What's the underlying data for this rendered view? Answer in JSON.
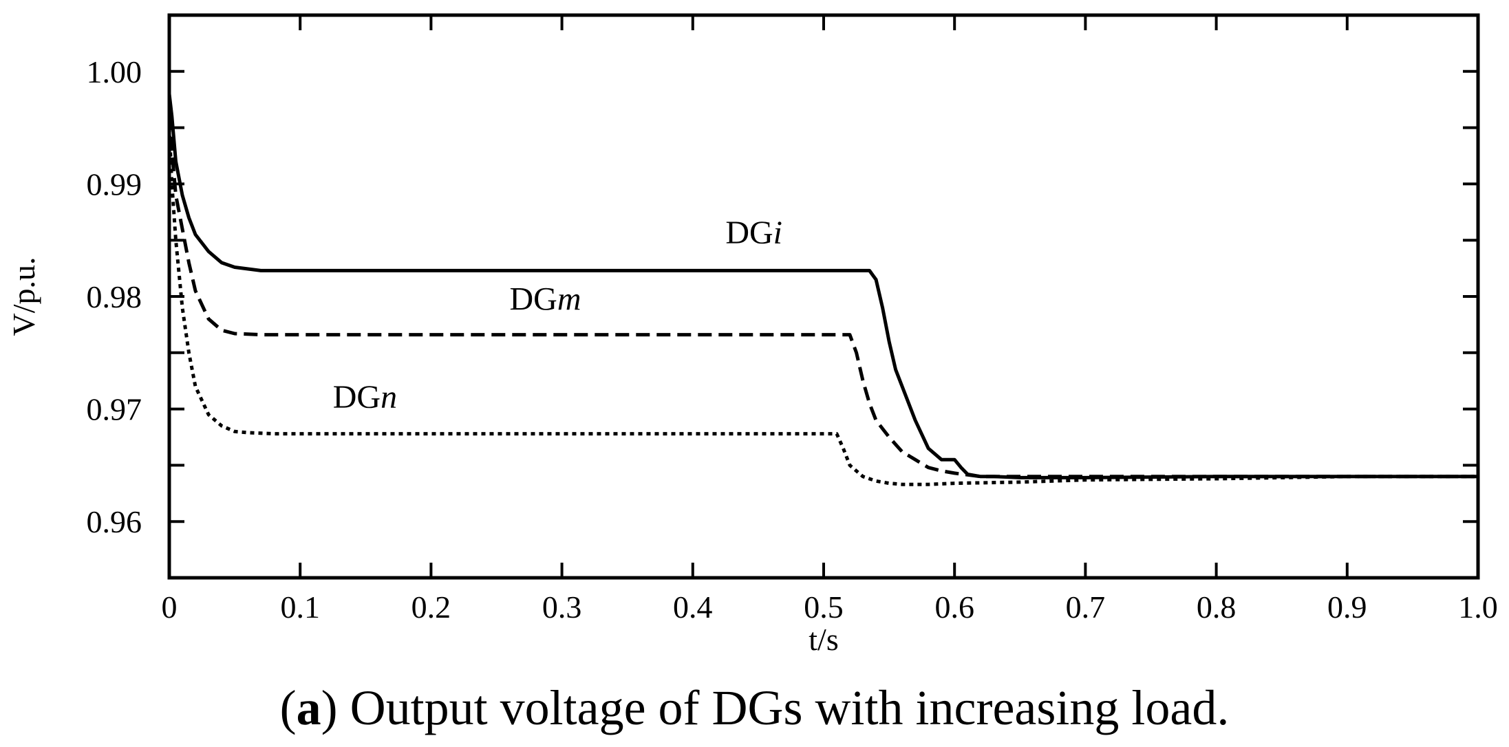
{
  "chart_data": {
    "type": "line",
    "title": "",
    "xlabel": "t/s",
    "ylabel": "V/p.u.",
    "xlim": [
      0,
      1.0
    ],
    "ylim": [
      0.955,
      1.005
    ],
    "x_ticks": [
      0,
      0.1,
      0.2,
      0.3,
      0.4,
      0.5,
      0.6,
      0.7,
      0.8,
      0.9,
      1.0
    ],
    "x_tick_labels": [
      "0",
      "0.1",
      "0.2",
      "0.3",
      "0.4",
      "0.5",
      "0.6",
      "0.7",
      "0.8",
      "0.9",
      "1.0"
    ],
    "y_ticks": [
      0.96,
      0.965,
      0.97,
      0.975,
      0.98,
      0.985,
      0.99,
      0.995,
      1.0
    ],
    "y_labeled_ticks": [
      0.96,
      0.97,
      0.98,
      0.99,
      1.0
    ],
    "y_tick_labels": [
      "0.96",
      "0.97",
      "0.98",
      "0.99",
      "1.00"
    ],
    "grid": false,
    "series": [
      {
        "name": "DGi",
        "prefix": "DG",
        "suffix": "i",
        "style": "solid",
        "x": [
          0,
          0.002,
          0.005,
          0.01,
          0.015,
          0.02,
          0.03,
          0.04,
          0.05,
          0.07,
          0.1,
          0.2,
          0.3,
          0.4,
          0.5,
          0.535,
          0.54,
          0.545,
          0.55,
          0.555,
          0.56,
          0.57,
          0.58,
          0.59,
          0.6,
          0.605,
          0.61,
          0.62,
          0.63,
          0.65,
          0.7,
          0.8,
          0.9,
          1.0
        ],
        "values": [
          0.998,
          0.996,
          0.992,
          0.989,
          0.987,
          0.9855,
          0.984,
          0.983,
          0.9826,
          0.9823,
          0.9823,
          0.9823,
          0.9823,
          0.9823,
          0.9823,
          0.9823,
          0.9815,
          0.979,
          0.976,
          0.9735,
          0.972,
          0.969,
          0.9665,
          0.9655,
          0.9655,
          0.9648,
          0.9642,
          0.964,
          0.964,
          0.9639,
          0.9639,
          0.964,
          0.964,
          0.964
        ]
      },
      {
        "name": "DGm",
        "prefix": "DG",
        "suffix": "m",
        "style": "dashed",
        "x": [
          0,
          0.002,
          0.005,
          0.01,
          0.015,
          0.02,
          0.03,
          0.04,
          0.05,
          0.07,
          0.1,
          0.2,
          0.3,
          0.4,
          0.5,
          0.52,
          0.525,
          0.53,
          0.535,
          0.54,
          0.55,
          0.56,
          0.57,
          0.58,
          0.59,
          0.6,
          0.62,
          0.65,
          0.7,
          0.8,
          0.9,
          1.0
        ],
        "values": [
          0.996,
          0.993,
          0.989,
          0.986,
          0.983,
          0.9805,
          0.978,
          0.977,
          0.9767,
          0.9766,
          0.9766,
          0.9766,
          0.9766,
          0.9766,
          0.9766,
          0.9766,
          0.975,
          0.9725,
          0.9705,
          0.969,
          0.9675,
          0.9662,
          0.9655,
          0.9648,
          0.9645,
          0.9643,
          0.964,
          0.964,
          0.964,
          0.964,
          0.964,
          0.964
        ]
      },
      {
        "name": "DGn",
        "prefix": "DG",
        "suffix": "n",
        "style": "dotted",
        "x": [
          0,
          0.002,
          0.005,
          0.01,
          0.015,
          0.02,
          0.03,
          0.04,
          0.05,
          0.06,
          0.08,
          0.1,
          0.2,
          0.3,
          0.4,
          0.5,
          0.51,
          0.515,
          0.52,
          0.53,
          0.54,
          0.55,
          0.56,
          0.58,
          0.6,
          0.65,
          0.7,
          0.8,
          0.9,
          1.0
        ],
        "values": [
          0.995,
          0.99,
          0.985,
          0.979,
          0.975,
          0.972,
          0.9695,
          0.9685,
          0.968,
          0.9679,
          0.9678,
          0.9678,
          0.9678,
          0.9678,
          0.9678,
          0.9678,
          0.9678,
          0.9665,
          0.965,
          0.964,
          0.9636,
          0.9634,
          0.9633,
          0.9633,
          0.9634,
          0.9635,
          0.9637,
          0.9638,
          0.964,
          0.964
        ]
      }
    ],
    "annotations": [
      {
        "text_prefix": "DG",
        "text_italic": "i",
        "x": 0.425,
        "y": 0.9847
      },
      {
        "text_prefix": "DG",
        "text_italic": "m",
        "x": 0.26,
        "y": 0.9788
      },
      {
        "text_prefix": "DG",
        "text_italic": "n",
        "x": 0.125,
        "y": 0.9701
      }
    ]
  },
  "caption": {
    "letter": "a",
    "open": "(",
    "close": ")",
    "text": " Output voltage of DGs with increasing load."
  }
}
